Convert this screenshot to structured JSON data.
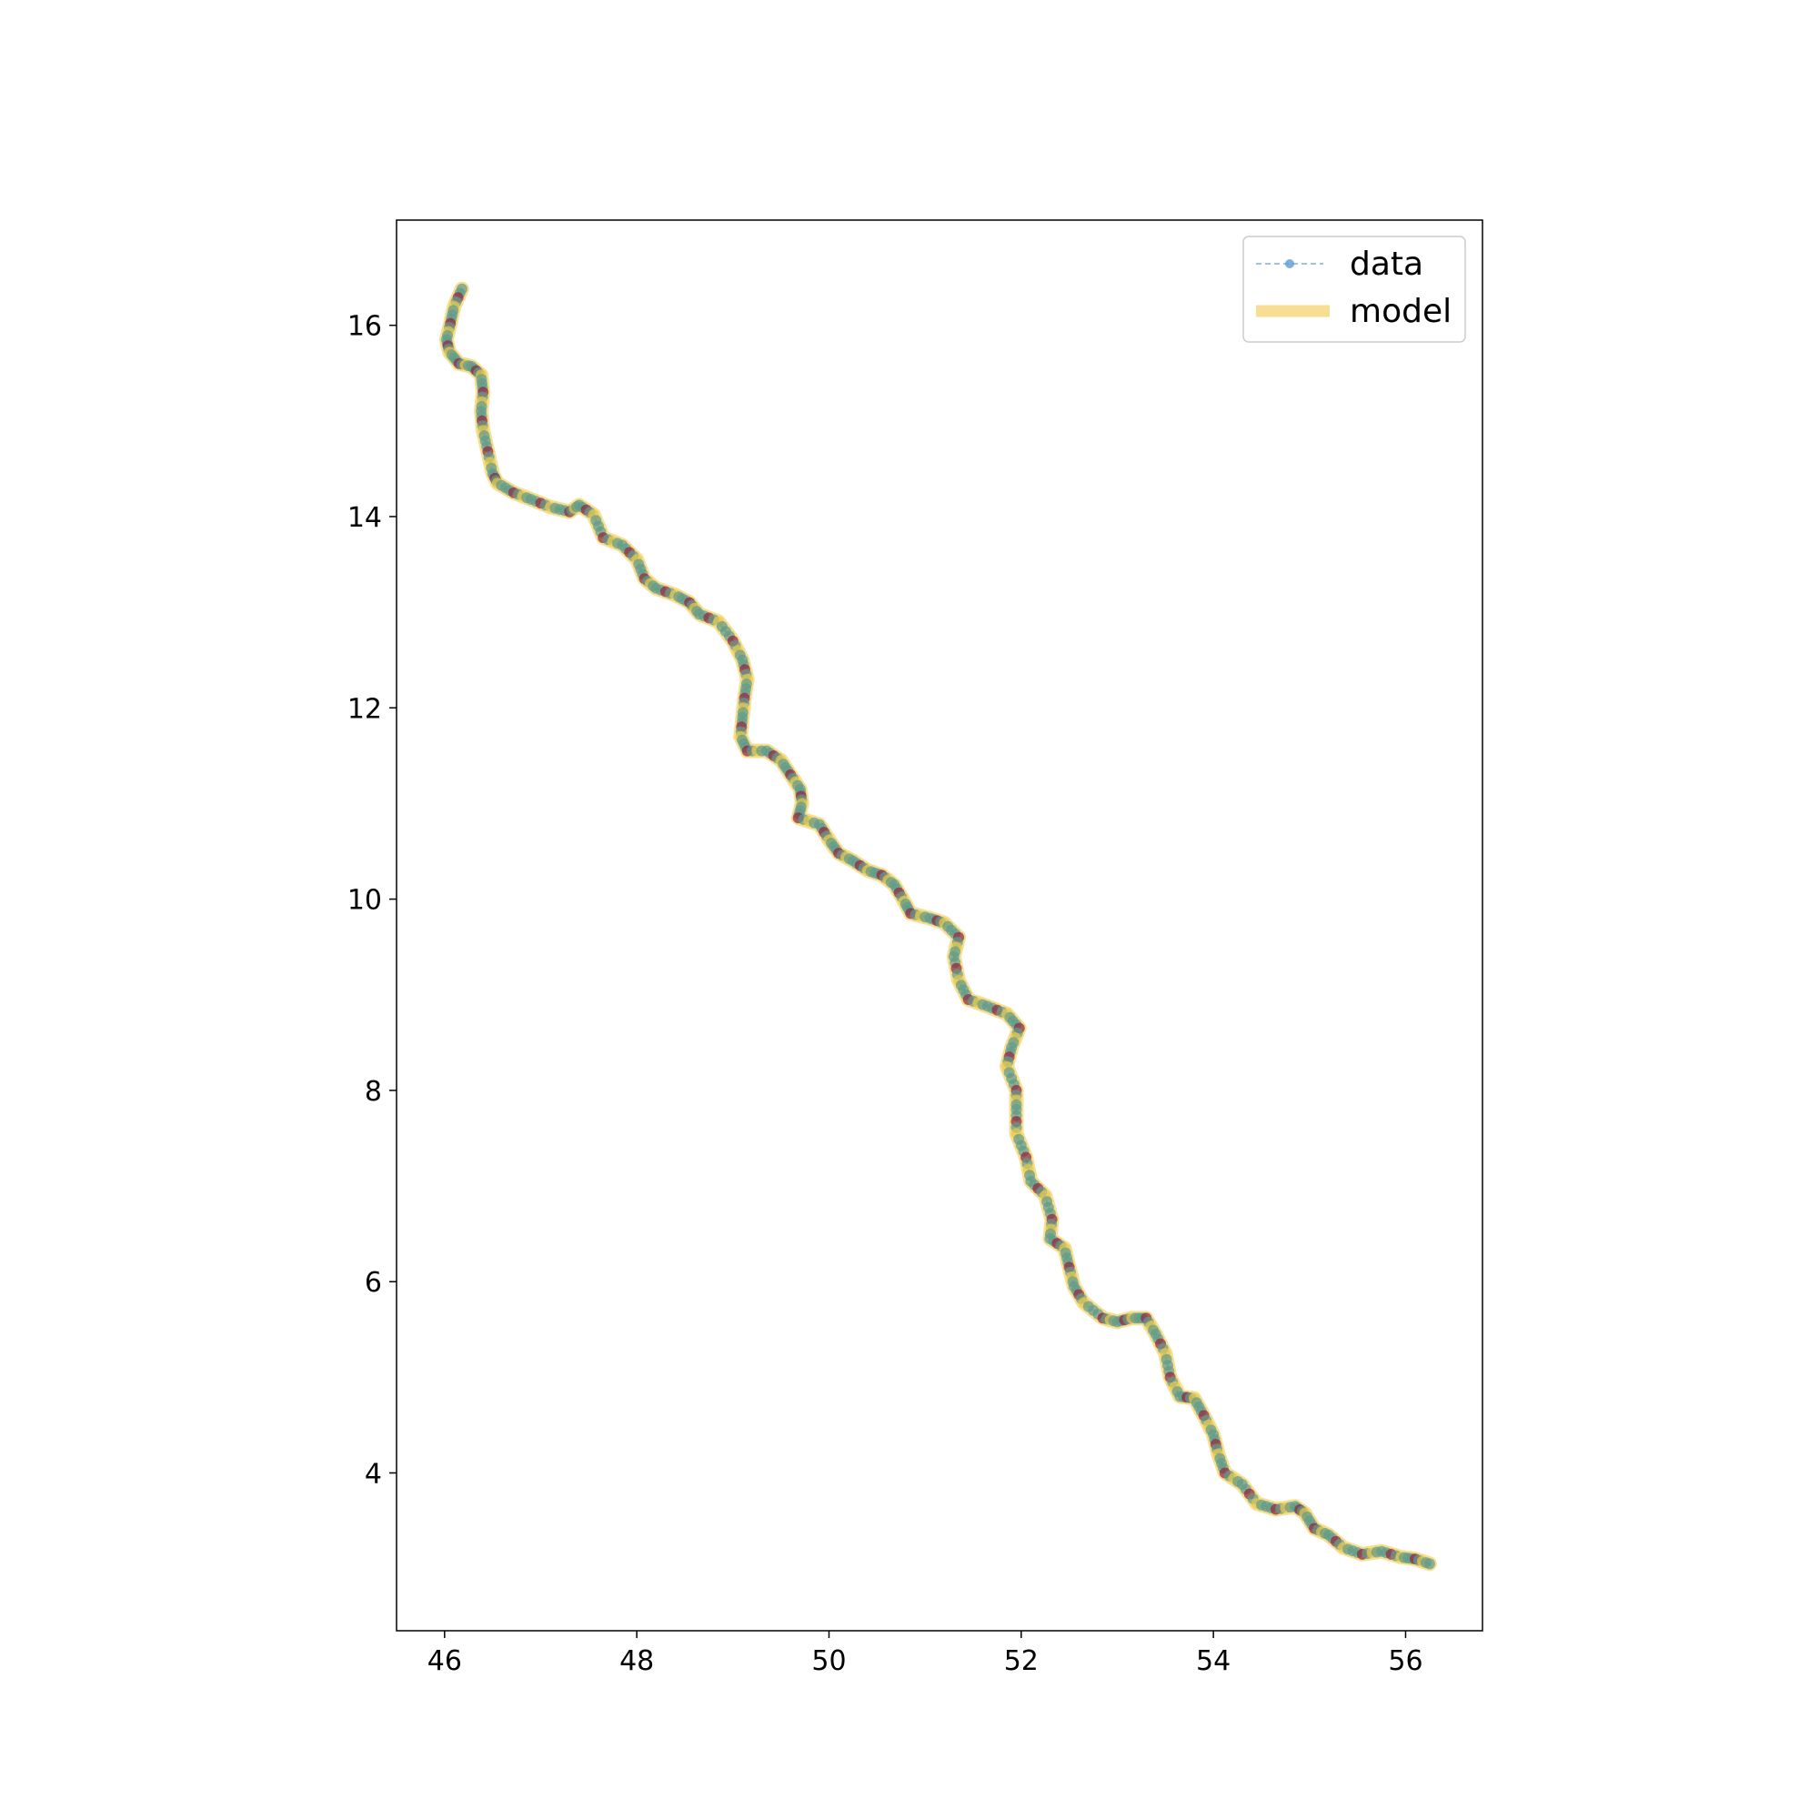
{
  "chart_data": {
    "type": "line",
    "title": "",
    "xlabel": "",
    "ylabel": "",
    "xlim": [
      45.5,
      56.8
    ],
    "ylim": [
      2.35,
      17.1
    ],
    "grid": false,
    "legend_placement": "top-right",
    "xticks": [
      46,
      48,
      50,
      52,
      54,
      56
    ],
    "yticks": [
      4,
      6,
      8,
      10,
      12,
      14,
      16
    ],
    "colors": {
      "data_line": "#5b9bd5",
      "marker_teal": "#5f9a8a",
      "marker_red": "#8b2240",
      "marker_yellow": "#e8c84a",
      "model": "#f6d46b"
    },
    "series": [
      {
        "name": "data",
        "style": "dashed-line-with-markers",
        "points": [
          [
            46.18,
            16.38
          ],
          [
            46.1,
            16.2
          ],
          [
            46.06,
            16.02
          ],
          [
            46.02,
            15.85
          ],
          [
            46.05,
            15.72
          ],
          [
            46.15,
            15.6
          ],
          [
            46.28,
            15.57
          ],
          [
            46.38,
            15.48
          ],
          [
            46.4,
            15.3
          ],
          [
            46.38,
            15.1
          ],
          [
            46.4,
            14.9
          ],
          [
            46.45,
            14.68
          ],
          [
            46.5,
            14.45
          ],
          [
            46.55,
            14.35
          ],
          [
            46.72,
            14.25
          ],
          [
            46.9,
            14.18
          ],
          [
            47.1,
            14.1
          ],
          [
            47.3,
            14.05
          ],
          [
            47.4,
            14.12
          ],
          [
            47.55,
            14.02
          ],
          [
            47.65,
            13.78
          ],
          [
            47.85,
            13.7
          ],
          [
            48.0,
            13.55
          ],
          [
            48.08,
            13.35
          ],
          [
            48.2,
            13.25
          ],
          [
            48.4,
            13.18
          ],
          [
            48.55,
            13.1
          ],
          [
            48.65,
            12.98
          ],
          [
            48.85,
            12.9
          ],
          [
            49.0,
            12.7
          ],
          [
            49.1,
            12.5
          ],
          [
            49.15,
            12.3
          ],
          [
            49.12,
            12.1
          ],
          [
            49.1,
            11.9
          ],
          [
            49.08,
            11.7
          ],
          [
            49.15,
            11.55
          ],
          [
            49.35,
            11.55
          ],
          [
            49.5,
            11.45
          ],
          [
            49.6,
            11.3
          ],
          [
            49.7,
            11.15
          ],
          [
            49.72,
            11.0
          ],
          [
            49.68,
            10.85
          ],
          [
            49.9,
            10.78
          ],
          [
            50.0,
            10.62
          ],
          [
            50.1,
            10.48
          ],
          [
            50.25,
            10.4
          ],
          [
            50.4,
            10.3
          ],
          [
            50.55,
            10.25
          ],
          [
            50.68,
            10.15
          ],
          [
            50.78,
            9.98
          ],
          [
            50.85,
            9.85
          ],
          [
            51.05,
            9.8
          ],
          [
            51.2,
            9.75
          ],
          [
            51.35,
            9.6
          ],
          [
            51.3,
            9.4
          ],
          [
            51.35,
            9.15
          ],
          [
            51.45,
            8.95
          ],
          [
            51.65,
            8.88
          ],
          [
            51.85,
            8.8
          ],
          [
            51.98,
            8.65
          ],
          [
            51.9,
            8.45
          ],
          [
            51.85,
            8.25
          ],
          [
            51.95,
            8.0
          ],
          [
            51.95,
            7.8
          ],
          [
            51.95,
            7.55
          ],
          [
            52.05,
            7.3
          ],
          [
            52.1,
            7.05
          ],
          [
            52.25,
            6.9
          ],
          [
            52.32,
            6.65
          ],
          [
            52.3,
            6.45
          ],
          [
            52.45,
            6.35
          ],
          [
            52.5,
            6.15
          ],
          [
            52.55,
            5.95
          ],
          [
            52.65,
            5.78
          ],
          [
            52.85,
            5.62
          ],
          [
            53.0,
            5.58
          ],
          [
            53.15,
            5.62
          ],
          [
            53.3,
            5.62
          ],
          [
            53.4,
            5.45
          ],
          [
            53.5,
            5.25
          ],
          [
            53.55,
            5.0
          ],
          [
            53.65,
            4.8
          ],
          [
            53.8,
            4.78
          ],
          [
            53.9,
            4.6
          ],
          [
            54.0,
            4.4
          ],
          [
            54.05,
            4.2
          ],
          [
            54.12,
            4.0
          ],
          [
            54.3,
            3.88
          ],
          [
            54.45,
            3.68
          ],
          [
            54.65,
            3.62
          ],
          [
            54.85,
            3.65
          ],
          [
            54.95,
            3.58
          ],
          [
            55.05,
            3.42
          ],
          [
            55.2,
            3.35
          ],
          [
            55.35,
            3.22
          ],
          [
            55.55,
            3.15
          ],
          [
            55.75,
            3.18
          ],
          [
            55.95,
            3.12
          ],
          [
            56.1,
            3.1
          ],
          [
            56.25,
            3.05
          ]
        ]
      },
      {
        "name": "model",
        "style": "thick-translucent-line"
      }
    ]
  }
}
